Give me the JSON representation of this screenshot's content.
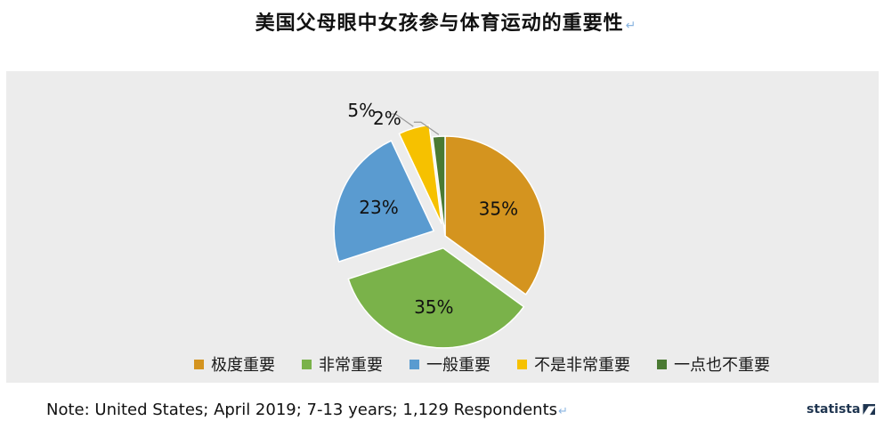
{
  "title": "美国父母眼中女孩参与体育运动的重要性",
  "note": "Note: United States; April 2019; 7-13 years; 1,129 Respondents",
  "brand": "statista",
  "chart_data": {
    "type": "pie",
    "title": "美国父母眼中女孩参与体育运动的重要性",
    "legend_position": "bottom",
    "slices": [
      {
        "label": "极度重要",
        "value": 35,
        "display": "35%",
        "color": "#d4941f",
        "exploded": false
      },
      {
        "label": "非常重要",
        "value": 35,
        "display": "35%",
        "color": "#7ab24a",
        "exploded": true
      },
      {
        "label": "一般重要",
        "value": 23,
        "display": "23%",
        "color": "#5a9bd0",
        "exploded": true
      },
      {
        "label": "不是非常重要",
        "value": 5,
        "display": "5%",
        "color": "#f6c100",
        "exploded": true
      },
      {
        "label": "一点也不重要",
        "value": 2,
        "display": "2%",
        "color": "#4a7a32",
        "exploded": false
      }
    ]
  }
}
